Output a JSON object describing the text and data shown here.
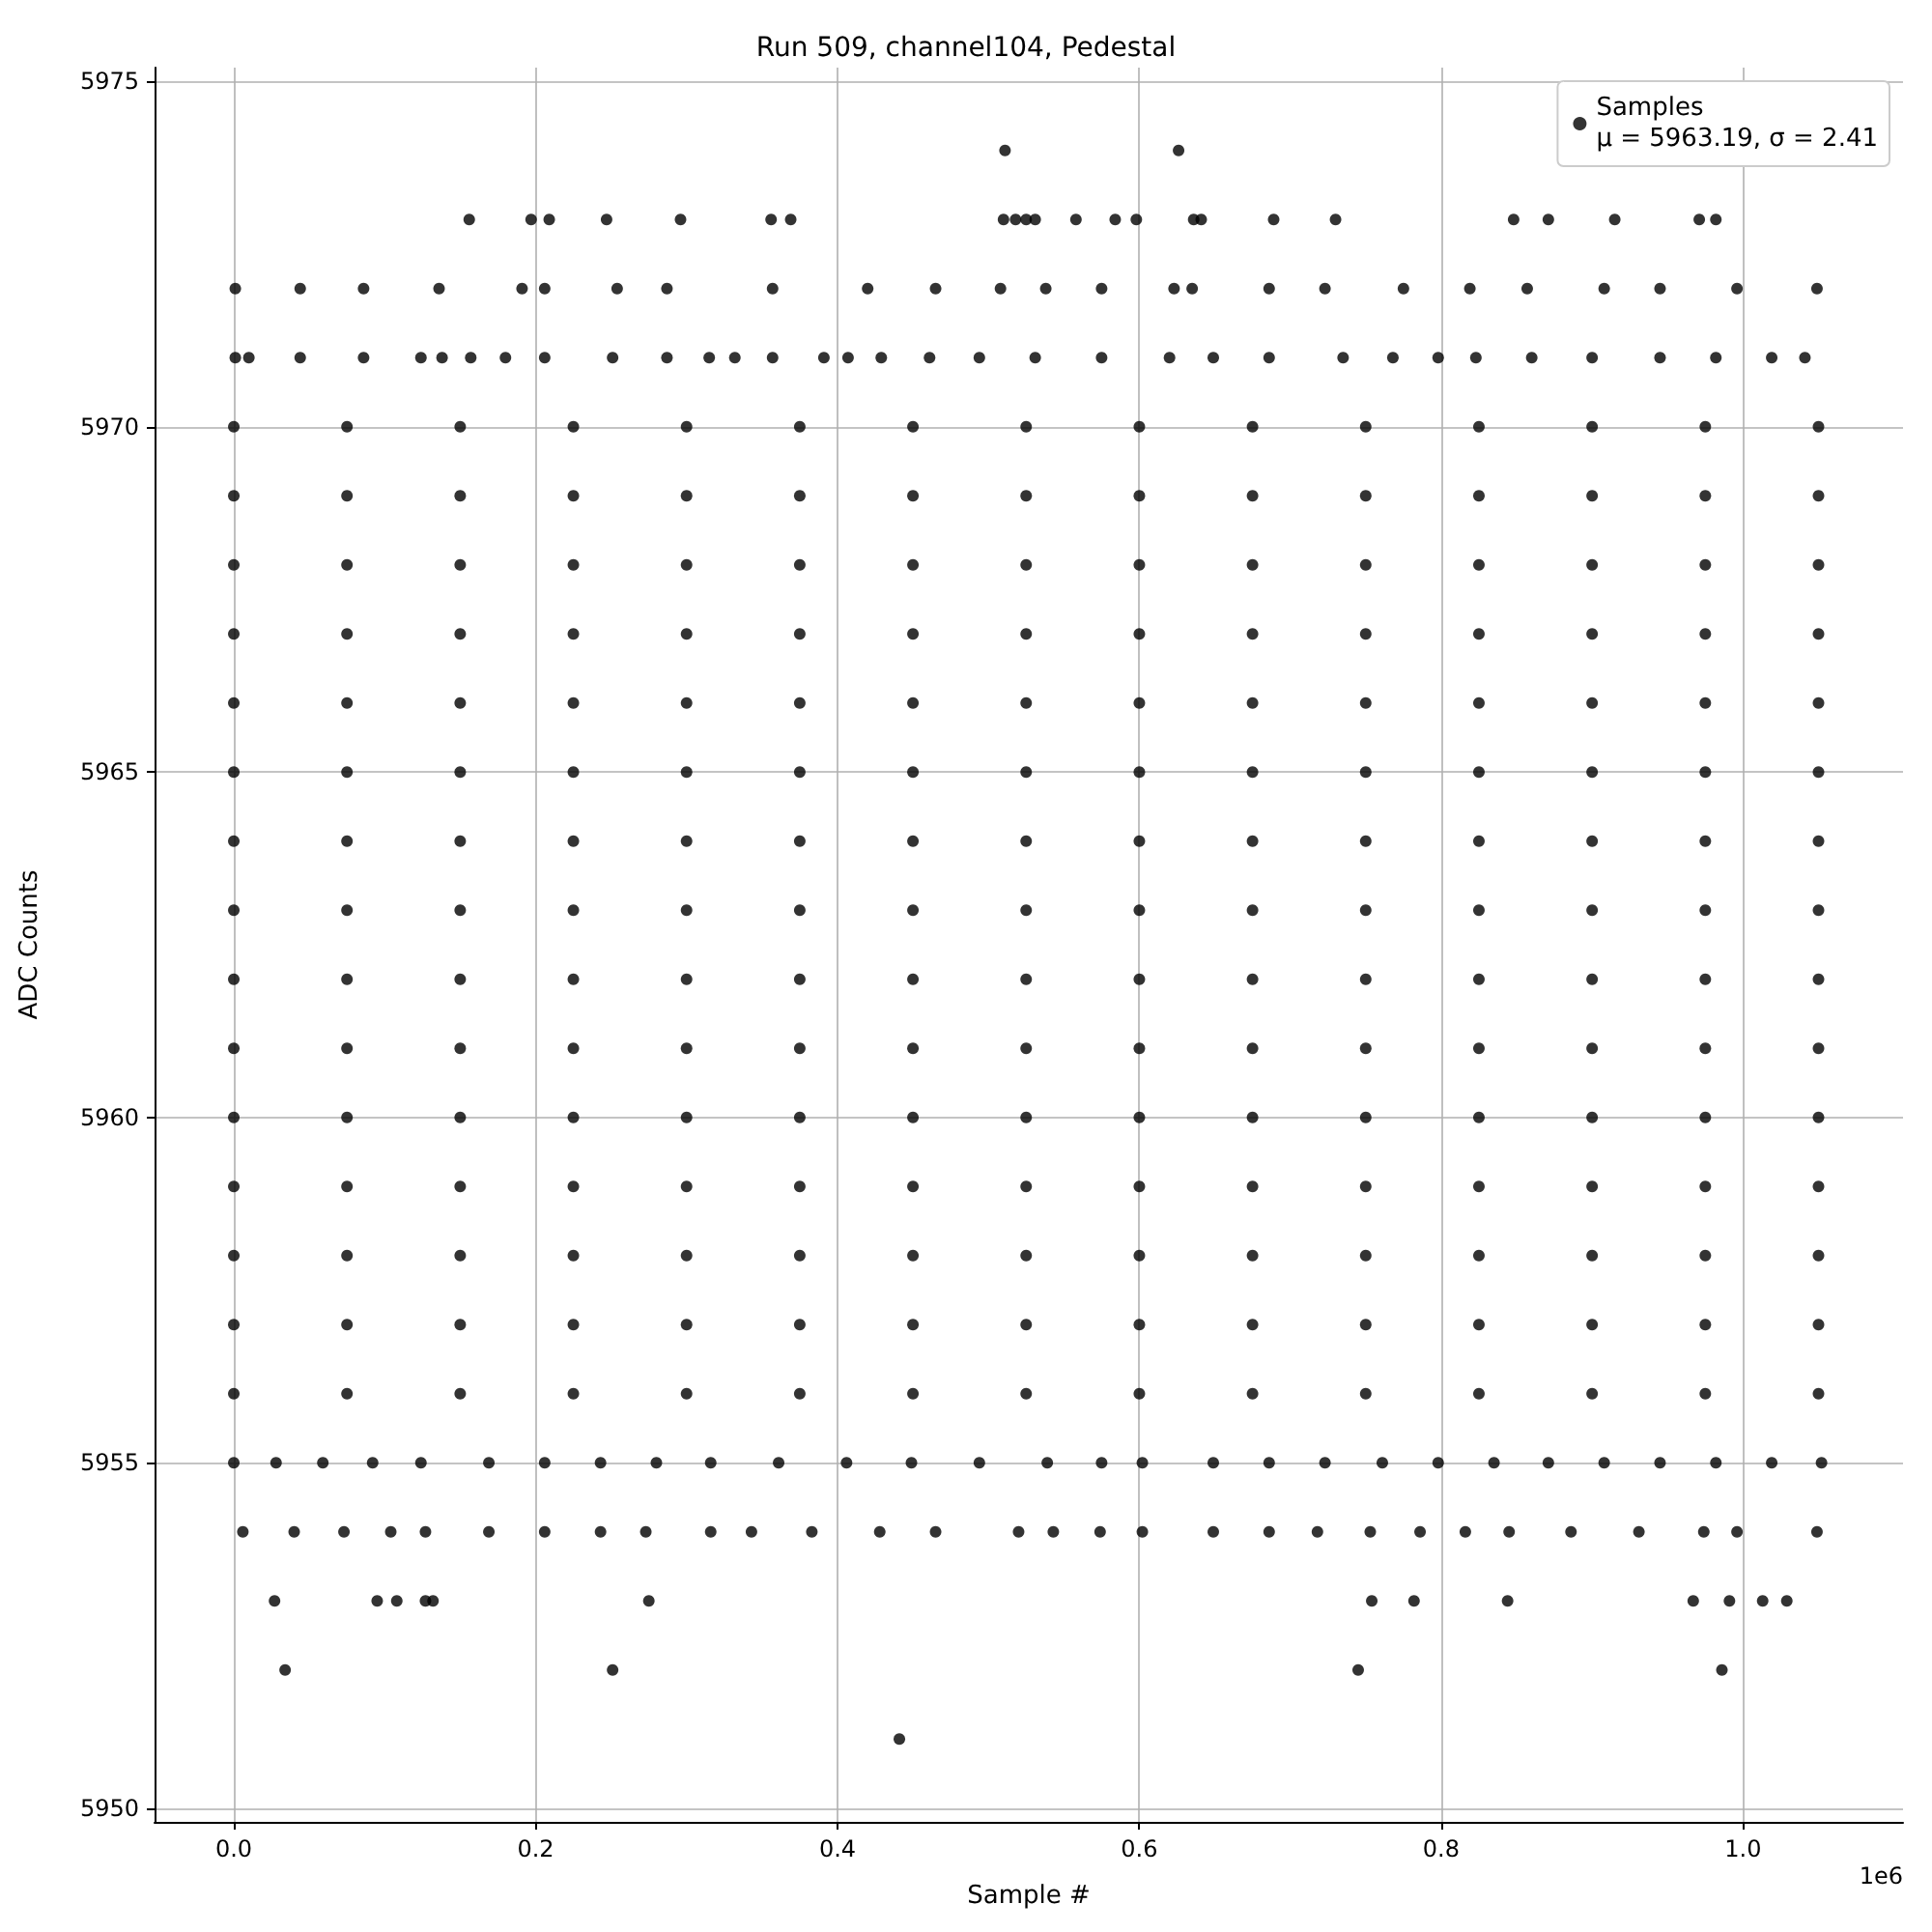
{
  "chart_data": {
    "type": "scatter",
    "title": "Run 509, channel104, Pedestal",
    "xlabel": "Sample #",
    "ylabel": "ADC Counts",
    "annotations": [
      "1e6"
    ],
    "xlim": [
      -0.0525,
      1.106
    ],
    "ylim": [
      5949.8,
      5975.2
    ],
    "xticks": [
      {
        "value": 0,
        "label": "0.0"
      },
      0.2,
      0.4,
      0.6,
      0.8,
      {
        "value": 1,
        "label": "1.0"
      }
    ],
    "yticks": [
      5950,
      5955,
      5960,
      5965,
      5970,
      5975
    ],
    "grid": true,
    "legend": "top right",
    "marker": "circle",
    "series": [
      {
        "name": "Samples\nμ = 5963.19, σ = 2.41",
        "color": "#000000",
        "x": [
          0.511,
          0.626
        ],
        "values": [
          5974,
          5974
        ]
      },
      {
        "color": "#000000",
        "x": [
          0.156,
          0.197,
          0.209,
          0.247,
          0.296,
          0.356,
          0.369,
          0.51,
          0.518,
          0.525,
          0.531,
          0.558,
          0.584,
          0.598,
          0.636,
          0.641,
          0.689,
          0.73,
          0.848,
          0.871,
          0.915,
          0.971,
          0.982
        ],
        "values": [
          5973,
          5973,
          5973,
          5973,
          5973,
          5973,
          5973,
          5973,
          5973,
          5973,
          5973,
          5973,
          5973,
          5973,
          5973,
          5973,
          5973,
          5973,
          5973,
          5973,
          5973,
          5973,
          5973
        ]
      },
      {
        "color": "#000000",
        "x": [
          0.001,
          0.044,
          0.086,
          0.136,
          0.191,
          0.206,
          0.254,
          0.287,
          0.357,
          0.42,
          0.465,
          0.508,
          0.538,
          0.575,
          0.623,
          0.635,
          0.686,
          0.723,
          0.775,
          0.819,
          0.857,
          0.908,
          0.945,
          0.996,
          1.049
        ],
        "values": [
          5972,
          5972,
          5972,
          5972,
          5972,
          5972,
          5972,
          5972,
          5972,
          5972,
          5972,
          5972,
          5972,
          5972,
          5972,
          5972,
          5972,
          5972,
          5972,
          5972,
          5972,
          5972,
          5972,
          5972,
          5972
        ]
      },
      {
        "color": "#000000",
        "x": [
          0.001,
          0.01,
          0.044,
          0.086,
          0.124,
          0.138,
          0.157,
          0.18,
          0.206,
          0.251,
          0.287,
          0.315,
          0.332,
          0.357,
          0.391,
          0.407,
          0.429,
          0.461,
          0.494,
          0.531,
          0.575,
          0.62,
          0.649,
          0.686,
          0.735,
          0.768,
          0.798,
          0.823,
          0.86,
          0.9,
          0.945,
          0.982,
          1.019,
          1.041
        ],
        "values": [
          5971,
          5971,
          5971,
          5971,
          5971,
          5971,
          5971,
          5971,
          5971,
          5971,
          5971,
          5971,
          5971,
          5971,
          5971,
          5971,
          5971,
          5971,
          5971,
          5971,
          5971,
          5971,
          5971,
          5971,
          5971,
          5971,
          5971,
          5971,
          5971,
          5971,
          5971,
          5971,
          5971,
          5971
        ]
      },
      {
        "color": "#000000",
        "x": [
          0,
          0.075,
          0.15,
          0.225,
          0.3,
          0.375,
          0.45,
          0.525,
          0.6,
          0.675,
          0.75,
          0.825,
          0.9,
          0.975,
          1.05
        ],
        "values": [
          5970,
          5970,
          5970,
          5970,
          5970,
          5970,
          5970,
          5970,
          5970,
          5970,
          5970,
          5970,
          5970,
          5970,
          5970
        ]
      },
      {
        "color": "#000000",
        "x": [
          0,
          0.075,
          0.15,
          0.225,
          0.3,
          0.375,
          0.45,
          0.525,
          0.6,
          0.675,
          0.75,
          0.825,
          0.9,
          0.975,
          1.05
        ],
        "values": [
          5969,
          5969,
          5969,
          5969,
          5969,
          5969,
          5969,
          5969,
          5969,
          5969,
          5969,
          5969,
          5969,
          5969,
          5969
        ]
      },
      {
        "color": "#000000",
        "x": [
          0,
          0.075,
          0.15,
          0.225,
          0.3,
          0.375,
          0.45,
          0.525,
          0.6,
          0.675,
          0.75,
          0.825,
          0.9,
          0.975,
          1.05
        ],
        "values": [
          5968,
          5968,
          5968,
          5968,
          5968,
          5968,
          5968,
          5968,
          5968,
          5968,
          5968,
          5968,
          5968,
          5968,
          5968
        ]
      },
      {
        "color": "#000000",
        "x": [
          0,
          0.075,
          0.15,
          0.225,
          0.3,
          0.375,
          0.45,
          0.525,
          0.6,
          0.675,
          0.75,
          0.825,
          0.9,
          0.975,
          1.05
        ],
        "values": [
          5967,
          5967,
          5967,
          5967,
          5967,
          5967,
          5967,
          5967,
          5967,
          5967,
          5967,
          5967,
          5967,
          5967,
          5967
        ]
      },
      {
        "color": "#000000",
        "x": [
          0,
          0.075,
          0.15,
          0.225,
          0.3,
          0.375,
          0.45,
          0.525,
          0.6,
          0.675,
          0.75,
          0.825,
          0.9,
          0.975,
          1.05
        ],
        "values": [
          5966,
          5966,
          5966,
          5966,
          5966,
          5966,
          5966,
          5966,
          5966,
          5966,
          5966,
          5966,
          5966,
          5966,
          5966
        ]
      },
      {
        "color": "#000000",
        "x": [
          0,
          0.075,
          0.15,
          0.225,
          0.3,
          0.375,
          0.45,
          0.525,
          0.6,
          0.675,
          0.75,
          0.825,
          0.9,
          0.975,
          1.05
        ],
        "values": [
          5965,
          5965,
          5965,
          5965,
          5965,
          5965,
          5965,
          5965,
          5965,
          5965,
          5965,
          5965,
          5965,
          5965,
          5965
        ]
      },
      {
        "color": "#000000",
        "x": [
          0,
          0.075,
          0.15,
          0.225,
          0.3,
          0.375,
          0.45,
          0.525,
          0.6,
          0.675,
          0.75,
          0.825,
          0.9,
          0.975,
          1.05
        ],
        "values": [
          5964,
          5964,
          5964,
          5964,
          5964,
          5964,
          5964,
          5964,
          5964,
          5964,
          5964,
          5964,
          5964,
          5964,
          5964
        ]
      },
      {
        "color": "#000000",
        "x": [
          0,
          0.075,
          0.15,
          0.225,
          0.3,
          0.375,
          0.45,
          0.525,
          0.6,
          0.675,
          0.75,
          0.825,
          0.9,
          0.975,
          1.05
        ],
        "values": [
          5963,
          5963,
          5963,
          5963,
          5963,
          5963,
          5963,
          5963,
          5963,
          5963,
          5963,
          5963,
          5963,
          5963,
          5963
        ]
      },
      {
        "color": "#000000",
        "x": [
          0,
          0.075,
          0.15,
          0.225,
          0.3,
          0.375,
          0.45,
          0.525,
          0.6,
          0.675,
          0.75,
          0.825,
          0.9,
          0.975,
          1.05
        ],
        "values": [
          5962,
          5962,
          5962,
          5962,
          5962,
          5962,
          5962,
          5962,
          5962,
          5962,
          5962,
          5962,
          5962,
          5962,
          5962
        ]
      },
      {
        "color": "#000000",
        "x": [
          0,
          0.075,
          0.15,
          0.225,
          0.3,
          0.375,
          0.45,
          0.525,
          0.6,
          0.675,
          0.75,
          0.825,
          0.9,
          0.975,
          1.05
        ],
        "values": [
          5961,
          5961,
          5961,
          5961,
          5961,
          5961,
          5961,
          5961,
          5961,
          5961,
          5961,
          5961,
          5961,
          5961,
          5961
        ]
      },
      {
        "color": "#000000",
        "x": [
          0,
          0.075,
          0.15,
          0.225,
          0.3,
          0.375,
          0.45,
          0.525,
          0.6,
          0.675,
          0.75,
          0.825,
          0.9,
          0.975,
          1.05
        ],
        "values": [
          5960,
          5960,
          5960,
          5960,
          5960,
          5960,
          5960,
          5960,
          5960,
          5960,
          5960,
          5960,
          5960,
          5960,
          5960
        ]
      },
      {
        "color": "#000000",
        "x": [
          0,
          0.075,
          0.15,
          0.225,
          0.3,
          0.375,
          0.45,
          0.525,
          0.6,
          0.675,
          0.75,
          0.825,
          0.9,
          0.975,
          1.05
        ],
        "values": [
          5959,
          5959,
          5959,
          5959,
          5959,
          5959,
          5959,
          5959,
          5959,
          5959,
          5959,
          5959,
          5959,
          5959,
          5959
        ]
      },
      {
        "color": "#000000",
        "x": [
          0,
          0.075,
          0.15,
          0.225,
          0.3,
          0.375,
          0.45,
          0.525,
          0.6,
          0.675,
          0.75,
          0.825,
          0.9,
          0.975,
          1.05
        ],
        "values": [
          5958,
          5958,
          5958,
          5958,
          5958,
          5958,
          5958,
          5958,
          5958,
          5958,
          5958,
          5958,
          5958,
          5958,
          5958
        ]
      },
      {
        "color": "#000000",
        "x": [
          0,
          0.075,
          0.15,
          0.225,
          0.3,
          0.375,
          0.45,
          0.525,
          0.6,
          0.675,
          0.75,
          0.825,
          0.9,
          0.975,
          1.05
        ],
        "values": [
          5957,
          5957,
          5957,
          5957,
          5957,
          5957,
          5957,
          5957,
          5957,
          5957,
          5957,
          5957,
          5957,
          5957,
          5957
        ]
      },
      {
        "color": "#000000",
        "x": [
          0,
          0.075,
          0.15,
          0.225,
          0.3,
          0.375,
          0.45,
          0.525,
          0.6,
          0.675,
          0.75,
          0.825,
          0.9,
          0.975,
          1.05
        ],
        "values": [
          5956,
          5956,
          5956,
          5956,
          5956,
          5956,
          5956,
          5956,
          5956,
          5956,
          5956,
          5956,
          5956,
          5956,
          5956
        ]
      },
      {
        "color": "#000000",
        "x": [
          0,
          0.028,
          0.059,
          0.092,
          0.124,
          0.169,
          0.206,
          0.243,
          0.28,
          0.316,
          0.361,
          0.406,
          0.449,
          0.494,
          0.539,
          0.575,
          0.602,
          0.649,
          0.686,
          0.723,
          0.761,
          0.798,
          0.835,
          0.871,
          0.908,
          0.945,
          0.982,
          1.019,
          1.052
        ],
        "values": [
          5955,
          5955,
          5955,
          5955,
          5955,
          5955,
          5955,
          5955,
          5955,
          5955,
          5955,
          5955,
          5955,
          5955,
          5955,
          5955,
          5955,
          5955,
          5955,
          5955,
          5955,
          5955,
          5955,
          5955,
          5955,
          5955,
          5955,
          5955,
          5955
        ]
      },
      {
        "color": "#000000",
        "x": [
          0.006,
          0.04,
          0.073,
          0.104,
          0.127,
          0.169,
          0.206,
          0.243,
          0.273,
          0.316,
          0.343,
          0.383,
          0.428,
          0.465,
          0.52,
          0.543,
          0.574,
          0.602,
          0.649,
          0.686,
          0.718,
          0.753,
          0.786,
          0.816,
          0.845,
          0.886,
          0.931,
          0.974,
          0.996,
          1.049
        ],
        "values": [
          5954,
          5954,
          5954,
          5954,
          5954,
          5954,
          5954,
          5954,
          5954,
          5954,
          5954,
          5954,
          5954,
          5954,
          5954,
          5954,
          5954,
          5954,
          5954,
          5954,
          5954,
          5954,
          5954,
          5954,
          5954,
          5954,
          5954,
          5954,
          5954,
          5954
        ]
      },
      {
        "color": "#000000",
        "x": [
          0.027,
          0.095,
          0.108,
          0.127,
          0.132,
          0.275,
          0.754,
          0.782,
          0.844,
          0.967,
          0.991,
          1.013,
          1.029
        ],
        "values": [
          5953,
          5953,
          5953,
          5953,
          5953,
          5953,
          5953,
          5953,
          5953,
          5953,
          5953,
          5953,
          5953
        ]
      },
      {
        "color": "#000000",
        "x": [
          0.034,
          0.251,
          0.745,
          0.986
        ],
        "values": [
          5952,
          5952,
          5952,
          5952
        ]
      },
      {
        "color": "#000000",
        "x": [
          0.441
        ],
        "values": [
          5951
        ]
      }
    ]
  }
}
